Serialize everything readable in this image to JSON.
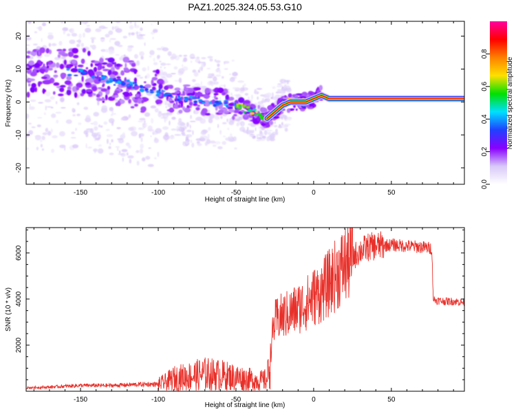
{
  "chart_data": [
    {
      "type": "heatmap",
      "title": "PAZ1.2025.324.05.53.G10",
      "xlabel": "Height of straight line (km)",
      "ylabel": "Frequency (Hz)",
      "xlim": [
        -185,
        97
      ],
      "ylim": [
        -25,
        24.5
      ],
      "x_ticks": [
        -150,
        -100,
        -50,
        0,
        50
      ],
      "y_ticks": [
        -20,
        -10,
        0,
        10,
        20
      ],
      "x_tick_labels": [
        "-150",
        "-100",
        "-50",
        "0",
        "50"
      ],
      "y_tick_labels": [
        "-20",
        "-10",
        "0",
        "10",
        "20"
      ],
      "colorbar": {
        "label": "Normalized spectral amplitude",
        "range": [
          0,
          1
        ],
        "ticks": [
          0.0,
          0.2,
          0.4,
          0.6,
          0.8
        ],
        "tick_labels": [
          "0.0",
          "0.2",
          "0.4",
          "0.6",
          "0.8"
        ],
        "colors": [
          "#ffffff",
          "#d8c8f8",
          "#8800ff",
          "#2040ff",
          "#00e0ff",
          "#00e000",
          "#ffe000",
          "#ff8000",
          "#ff0000",
          "#ff00a0"
        ]
      },
      "ridge": {
        "x": [
          -150,
          -140,
          -130,
          -120,
          -110,
          -100,
          -90,
          -80,
          -70,
          -60,
          -50,
          -40,
          -35,
          -30,
          -25,
          -20,
          -15,
          -10,
          -5,
          0,
          5,
          10,
          20,
          30,
          40,
          50,
          60,
          70,
          80,
          90,
          97
        ],
        "y": [
          9,
          8,
          6,
          6,
          4,
          3,
          1,
          1,
          0,
          0,
          -1,
          -3,
          -4,
          -5,
          -3,
          -1,
          0,
          0,
          0,
          1,
          2,
          1,
          1,
          1,
          1,
          1,
          1,
          1,
          1,
          1,
          1
        ]
      }
    },
    {
      "type": "line",
      "xlabel": "Height of straight line (km)",
      "ylabel": "SNR (10 * v/v)",
      "xlim": [
        -185,
        97
      ],
      "ylim": [
        0,
        7100
      ],
      "x_ticks": [
        -150,
        -100,
        -50,
        0,
        50
      ],
      "y_ticks": [
        2000,
        4000,
        6000
      ],
      "x_tick_labels": [
        "-150",
        "-100",
        "-50",
        "0",
        "50"
      ],
      "y_tick_labels": [
        "2000",
        "4000",
        "6000"
      ],
      "series": [
        {
          "name": "SNR",
          "color": "#e8302a",
          "x": [
            -185,
            -170,
            -150,
            -130,
            -110,
            -100,
            -95,
            -90,
            -80,
            -70,
            -60,
            -50,
            -40,
            -35,
            -30,
            -28,
            -26,
            -25,
            -22,
            -18,
            -15,
            -10,
            -5,
            0,
            5,
            10,
            15,
            20,
            25,
            30,
            35,
            40,
            50,
            60,
            70,
            76,
            77,
            78,
            85,
            90,
            97
          ],
          "y": [
            150,
            180,
            250,
            250,
            300,
            300,
            400,
            550,
            650,
            750,
            700,
            600,
            500,
            450,
            500,
            1500,
            2700,
            3000,
            3200,
            3300,
            3400,
            3600,
            3800,
            4100,
            4300,
            4700,
            5100,
            5500,
            5800,
            6100,
            6250,
            6300,
            6350,
            6300,
            6250,
            6200,
            4000,
            3950,
            3900,
            3900,
            3850
          ]
        }
      ]
    }
  ]
}
